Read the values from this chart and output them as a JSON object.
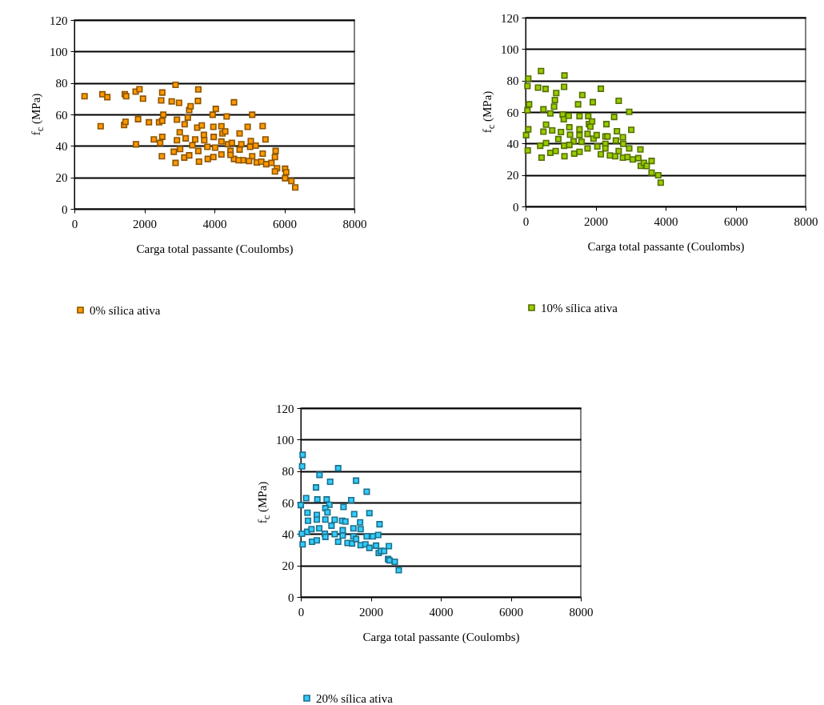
{
  "chart_data": [
    {
      "type": "scatter",
      "xlabel": "Carga total passante (Coulombs)",
      "ylabel": "f$_{c}$ (MPa)",
      "xlim": [
        0,
        8000
      ],
      "xticks": [
        0,
        2000,
        4000,
        6000,
        8000
      ],
      "ylim": [
        0,
        120
      ],
      "yticks": [
        0,
        20,
        40,
        60,
        80,
        100,
        120
      ],
      "grid": "y",
      "legend": "bottom",
      "marker": "square",
      "series": [
        {
          "name": "0% sílica ativa",
          "color": "#ff9900",
          "x": [
            290,
            800,
            940,
            1440,
            1480,
            1750,
            1860,
            1960,
            750,
            1420,
            1460,
            1820,
            2130,
            1760,
            2420,
            2510,
            2510,
            2480,
            2540,
            2270,
            2450,
            2510,
            2500,
            2780,
            2990,
            2890,
            2930,
            3150,
            3240,
            3280,
            3320,
            3010,
            2930,
            3180,
            3020,
            2840,
            2890,
            3140,
            3280,
            3370,
            3450,
            3540,
            3530,
            3510,
            3640,
            3700,
            3710,
            3540,
            3560,
            3800,
            3810,
            3950,
            4040,
            3970,
            3980,
            3970,
            4020,
            4200,
            4230,
            4310,
            4200,
            4200,
            4350,
            4390,
            4460,
            4500,
            4560,
            4560,
            4720,
            4720,
            4770,
            4820,
            4950,
            5040,
            5080,
            5020,
            5080,
            4990,
            5180,
            5210,
            5380,
            5460,
            5380,
            5340,
            5480,
            5630,
            5750,
            5730,
            5790,
            5730,
            6020,
            6050,
            6020,
            6200,
            6310,
            4690,
            4460
          ],
          "values": [
            71.6,
            72.8,
            71,
            72.8,
            71.6,
            74.5,
            76,
            70,
            52.5,
            53.3,
            55.3,
            57,
            55,
            41,
            55,
            55.9,
            73.9,
            68.9,
            59.8,
            44.1,
            41.9,
            45.8,
            33.4,
            68.3,
            67.4,
            78.8,
            56.7,
            53.8,
            58,
            62.8,
            65.2,
            48.7,
            43.6,
            44.8,
            38,
            36.3,
            29.2,
            32.6,
            34,
            40.4,
            44.1,
            75.9,
            68.6,
            51.6,
            53,
            47,
            43.6,
            36.8,
            30,
            39.4,
            31.7,
            59.8,
            63.5,
            52.1,
            45.7,
            32.9,
            38.9,
            52.5,
            47.9,
            49.2,
            42.8,
            34.6,
            58.7,
            41.1,
            36.8,
            41.9,
            67.7,
            31.7,
            47.9,
            37.7,
            41.1,
            30.9,
            52.1,
            43.1,
            59.8,
            39.4,
            33.4,
            30.4,
            40.2,
            29.5,
            52.6,
            44.1,
            35.1,
            30,
            28.4,
            29.2,
            36.8,
            32.9,
            25.8,
            23.8,
            25.5,
            23.3,
            19.5,
            17.7,
            13.6,
            30.9,
            34.3
          ]
        }
      ]
    },
    {
      "type": "scatter",
      "xlabel": "Carga total passante (Coulombs)",
      "ylabel": "f$_{c}$ (MPa)",
      "xlim": [
        0,
        8000
      ],
      "xticks": [
        0,
        2000,
        4000,
        6000,
        8000
      ],
      "ylim": [
        0,
        120
      ],
      "yticks": [
        0,
        20,
        40,
        60,
        80,
        100,
        120
      ],
      "grid": "y",
      "legend": "bottom",
      "marker": "square",
      "series": [
        {
          "name": "10% sílica ativa",
          "color": "#99cc00",
          "x": [
            76,
            53,
            99,
            53,
            76,
            15,
            61,
            441,
            357,
            570,
            875,
            837,
            814,
            510,
            707,
            585,
            510,
            760,
            418,
            585,
            456,
            707,
            859,
            1110,
            1100,
            1060,
            1090,
            1230,
            1010,
            935,
            1250,
            1270,
            1100,
            1110,
            1370,
            1390,
            1540,
            1250,
            1620,
            1500,
            1540,
            1540,
            1540,
            1600,
            1790,
            1810,
            1850,
            1900,
            1770,
            1770,
            1920,
            1940,
            2030,
            2050,
            2150,
            2150,
            2280,
            2340,
            2280,
            2310,
            2280,
            2410,
            2530,
            2560,
            2580,
            2610,
            2660,
            2660,
            2780,
            2790,
            2780,
            2910,
            2960,
            2960,
            3020,
            3060,
            3220,
            3280,
            3290,
            3380,
            3460,
            3600,
            3600,
            3790,
            3860
          ],
          "values": [
            81.2,
            76.5,
            64.9,
            61.1,
            49,
            45.3,
            35.6,
            86.1,
            75.5,
            74.7,
            72.1,
            67.6,
            63.4,
            61.7,
            59.1,
            52,
            47.5,
            48.3,
            38.6,
            40.3,
            31,
            34.1,
            35.2,
            83.2,
            76,
            58.4,
            55.4,
            57.6,
            47.3,
            42.8,
            50.3,
            45.6,
            38.6,
            31.9,
            41.4,
            33.6,
            34.7,
            39.1,
            70.8,
            64.9,
            57.4,
            49,
            45.3,
            41.1,
            57.4,
            52.3,
            50.7,
            54,
            46.1,
            36.9,
            66.3,
            43.1,
            45.3,
            38.1,
            74.8,
            33.2,
            44.5,
            44.5,
            39.8,
            52.3,
            36.9,
            32.4,
            56.9,
            31.9,
            41.9,
            47.8,
            67.1,
            35.2,
            44,
            39.8,
            31,
            31.4,
            60.1,
            36.9,
            48.7,
            29.9,
            30.7,
            36.2,
            25.8,
            27.7,
            25.7,
            28.9,
            21.5,
            19.8,
            15.1
          ]
        }
      ]
    },
    {
      "type": "scatter",
      "xlabel": "Carga total passante (Coulombs)",
      "ylabel": "f$_{c}$ (MPa)",
      "xlim": [
        0,
        8000
      ],
      "xticks": [
        0,
        2000,
        4000,
        6000,
        8000
      ],
      "ylim": [
        0,
        120
      ],
      "yticks": [
        0,
        20,
        40,
        60,
        80,
        100,
        120
      ],
      "grid": "y",
      "legend": "bottom",
      "marker": "square",
      "series": [
        {
          "name": "20% sílica ativa",
          "color": "#33ccff",
          "x": [
            53,
            38,
            0,
            153,
            191,
            206,
            31,
            53,
            183,
            305,
            320,
            458,
            534,
            435,
            473,
            740,
            816,
            702,
            763,
            458,
            458,
            702,
            526,
            687,
            702,
            839,
            877,
            969,
            969,
            1068,
            1068,
            1182,
            1198,
            1198,
            1274,
            1220,
            1335,
            1442,
            1465,
            1526,
            1503,
            1503,
            1579,
            1579,
            1694,
            1709,
            1709,
            1846,
            1884,
            1884,
            1960,
            1960,
            2060,
            2151,
            2212,
            2250,
            2227,
            2288,
            2380,
            2494,
            2517,
            2533,
            2685,
            2799
          ],
          "values": [
            90.3,
            83,
            58.4,
            62.8,
            53.5,
            48.4,
            40.2,
            33.4,
            41.4,
            43.1,
            35.1,
            36,
            77.6,
            69.6,
            62,
            62,
            58.6,
            56.4,
            53.8,
            52.1,
            49.2,
            49.2,
            43.6,
            40.2,
            38.2,
            73.2,
            45.3,
            49.1,
            39.9,
            81.8,
            35.1,
            48.4,
            42.4,
            39,
            47.9,
            57.2,
            34.3,
            61.5,
            34,
            52.6,
            43.6,
            38.5,
            73.9,
            36.8,
            47.4,
            43.1,
            32.9,
            33.4,
            38.5,
            66.9,
            53.3,
            31.2,
            38.5,
            32.6,
            39.4,
            46.2,
            28,
            29.2,
            29.2,
            24.1,
            32.3,
            23.3,
            22.4,
            17
          ]
        }
      ]
    }
  ]
}
